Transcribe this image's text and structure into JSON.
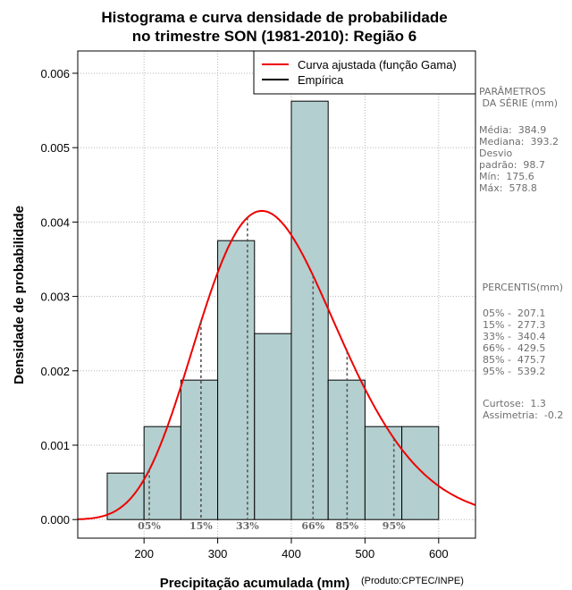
{
  "chart_data": {
    "type": "bar",
    "title_lines": [
      "Histograma e curva densidade de probabilidade",
      "no trimestre SON (1981-2010): Região 6"
    ],
    "xlabel": "Precipitação acumulada (mm)",
    "ylabel": "Densidade de probabilidade",
    "credit": "(Produto:CPTEC/INPE)",
    "xlim": [
      110,
      650
    ],
    "ylim": [
      -0.00025,
      0.0063
    ],
    "x_ticks": [
      200,
      300,
      400,
      500,
      600
    ],
    "y_ticks": [
      0.0,
      0.001,
      0.002,
      0.003,
      0.004,
      0.005,
      0.006
    ],
    "y_tick_labels": [
      "0.000",
      "0.001",
      "0.002",
      "0.003",
      "0.004",
      "0.005",
      "0.006"
    ],
    "grid": true,
    "bins": [
      {
        "x0": 150,
        "x1": 200,
        "density": 0.000625
      },
      {
        "x0": 200,
        "x1": 250,
        "density": 0.00125
      },
      {
        "x0": 250,
        "x1": 300,
        "density": 0.001875
      },
      {
        "x0": 300,
        "x1": 350,
        "density": 0.00375
      },
      {
        "x0": 350,
        "x1": 400,
        "density": 0.0025
      },
      {
        "x0": 400,
        "x1": 450,
        "density": 0.005625
      },
      {
        "x0": 450,
        "x1": 500,
        "density": 0.001875
      },
      {
        "x0": 500,
        "x1": 550,
        "density": 0.00125
      },
      {
        "x0": 550,
        "x1": 600,
        "density": 0.00125
      }
    ],
    "gamma_curve": {
      "label": "Curva ajustada (função Gama)",
      "mode": 360,
      "peak_density": 0.00415
    },
    "empirical_label": "Empírica",
    "legend_position": "top-right",
    "percentile_lines": [
      {
        "label": "05%",
        "x": 207.1
      },
      {
        "label": "15%",
        "x": 277.3
      },
      {
        "label": "33%",
        "x": 340.4
      },
      {
        "label": "66%",
        "x": 429.5
      },
      {
        "label": "85%",
        "x": 475.7
      },
      {
        "label": "95%",
        "x": 539.2
      }
    ],
    "colors": {
      "bar_fill": "#b4cfcf",
      "curve": "#ee0000",
      "grid": "#b5b5b5",
      "percentile": "#555555"
    }
  },
  "sidebar": {
    "params_title": "PARÂMETROS\n DA SÉRIE (mm)",
    "params_body": "Média:  384.9\nMediana:  393.2\nDesvio\npadrão:  98.7\nMín:  175.6\nMáx:  578.8",
    "percentis_title": " PERCENTIS(mm)",
    "percentis_body": "05% -  207.1\n15% -  277.3\n33% -  340.4\n66% -  429.5\n85% -  475.7\n95% -  539.2",
    "stats_body": "Curtose:  1.3\nAssimetria:  -0.2"
  }
}
